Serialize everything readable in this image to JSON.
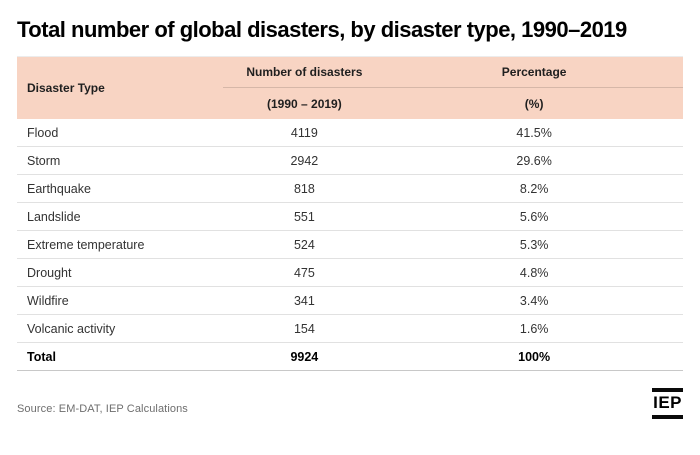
{
  "page": {
    "title": "Total number of global disasters, by disaster type, 1990–2019"
  },
  "table": {
    "headers": {
      "disaster_type": "Disaster Type",
      "number": "Number of disasters",
      "number_sub": "(1990 – 2019)",
      "percentage": "Percentage",
      "percentage_sub": "(%)"
    },
    "rows": [
      {
        "type": "Flood",
        "number": "4119",
        "percentage": "41.5%"
      },
      {
        "type": "Storm",
        "number": "2942",
        "percentage": "29.6%"
      },
      {
        "type": "Earthquake",
        "number": "818",
        "percentage": "8.2%"
      },
      {
        "type": "Landslide",
        "number": "551",
        "percentage": "5.6%"
      },
      {
        "type": "Extreme temperature",
        "number": "524",
        "percentage": "5.3%"
      },
      {
        "type": "Drought",
        "number": "475",
        "percentage": "4.8%"
      },
      {
        "type": "Wildfire",
        "number": "341",
        "percentage": "3.4%"
      },
      {
        "type": "Volcanic activity",
        "number": "154",
        "percentage": "1.6%"
      }
    ],
    "total_row": {
      "type": "Total",
      "number": "9924",
      "percentage": "100%"
    }
  },
  "footer": {
    "source": "Source: EM-DAT, IEP Calculations",
    "logo_text": "IEP"
  },
  "colors": {
    "header_bg": "#f8d4c3",
    "header_divider": "#d6b7a8",
    "row_divider": "#e1e1e1",
    "body_text": "#333333",
    "source_text": "#6e6e6e",
    "title_text": "#000000"
  },
  "chart_data": {
    "type": "table",
    "title": "Total number of global disasters, by disaster type, 1990–2019",
    "columns": [
      "Disaster Type",
      "Number of disasters (1990 – 2019)",
      "Percentage (%)"
    ],
    "categories": [
      "Flood",
      "Storm",
      "Earthquake",
      "Landslide",
      "Extreme temperature",
      "Drought",
      "Wildfire",
      "Volcanic activity"
    ],
    "series": [
      {
        "name": "Number of disasters",
        "values": [
          4119,
          2942,
          818,
          551,
          524,
          475,
          341,
          154
        ]
      },
      {
        "name": "Percentage",
        "values": [
          41.5,
          29.6,
          8.2,
          5.6,
          5.3,
          4.8,
          3.4,
          1.6
        ]
      }
    ],
    "total": {
      "name": "Total",
      "number": 9924,
      "percentage": 100
    },
    "layout": {
      "grid": "horizontal row dividers only",
      "header_background": "#f8d4c3"
    }
  }
}
